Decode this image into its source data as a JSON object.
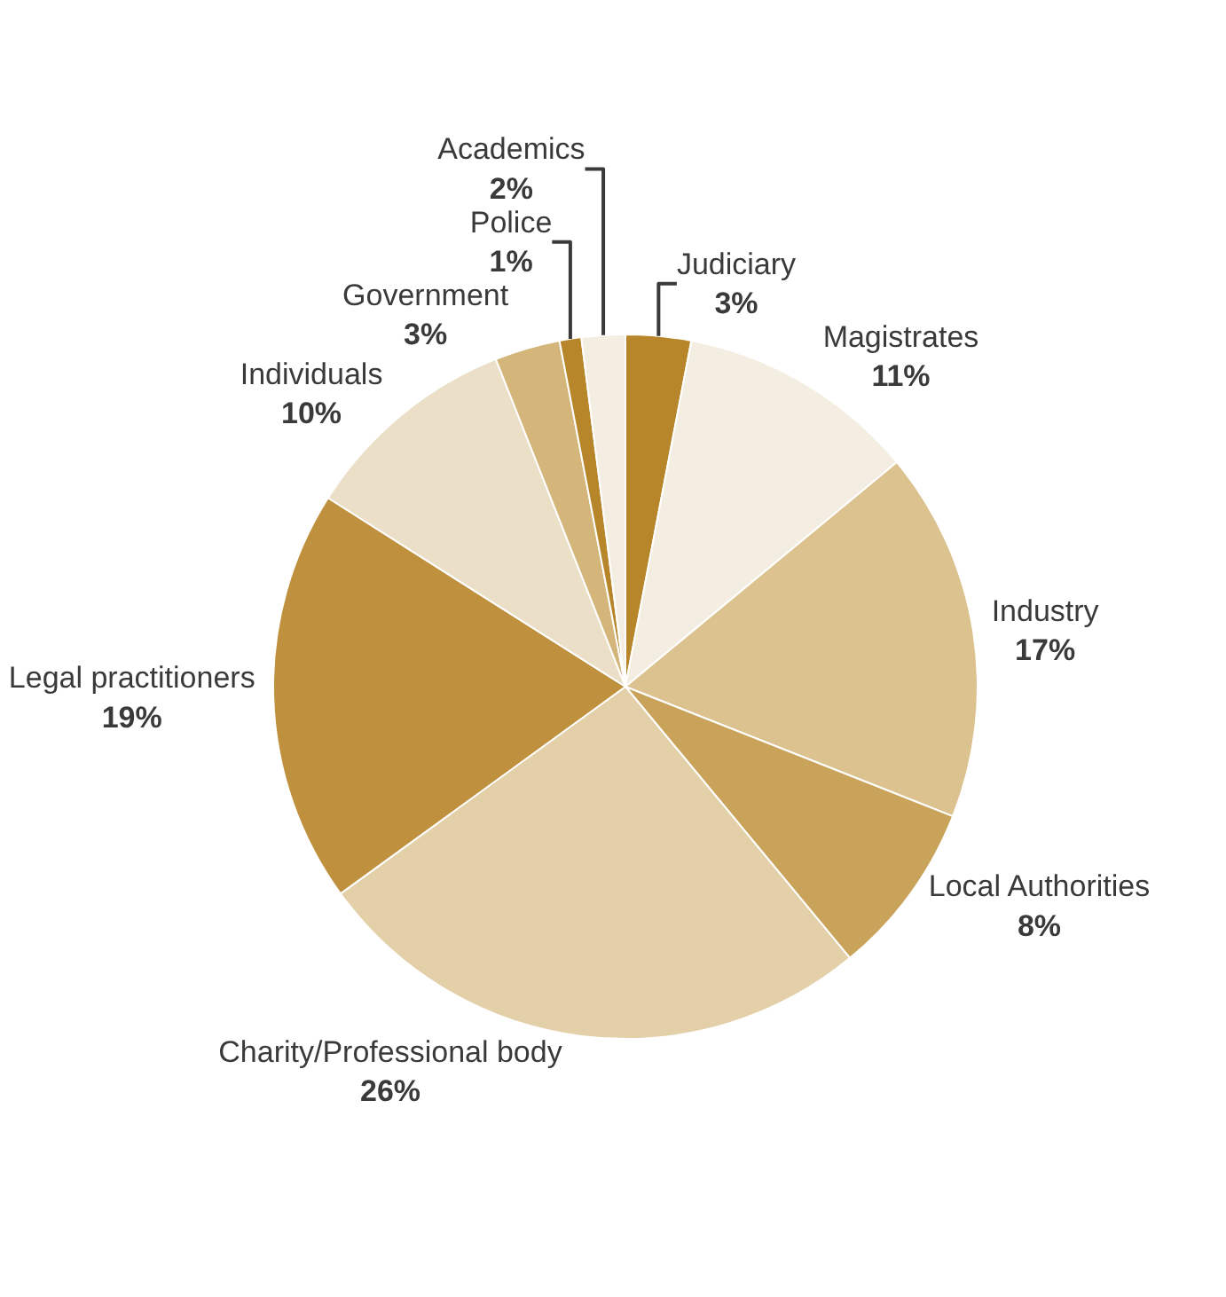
{
  "chart_data": {
    "type": "pie",
    "categories": [
      "Judiciary",
      "Magistrates",
      "Industry",
      "Local Authorities",
      "Charity/Professional body",
      "Legal practitioners",
      "Individuals",
      "Government",
      "Police",
      "Academics"
    ],
    "values": [
      3,
      11,
      17,
      8,
      26,
      19,
      10,
      3,
      1,
      2
    ],
    "value_labels": [
      "3%",
      "11%",
      "17%",
      "8%",
      "26%",
      "19%",
      "10%",
      "3%",
      "1%",
      "2%"
    ],
    "colors": [
      "#b8862a",
      "#f4ede1",
      "#dbc28f",
      "#c9a35a",
      "#e4d0a8",
      "#bf913e",
      "#ebdfc8",
      "#d4b57a",
      "#b8862a",
      "#f4ede1"
    ],
    "legend": false
  }
}
